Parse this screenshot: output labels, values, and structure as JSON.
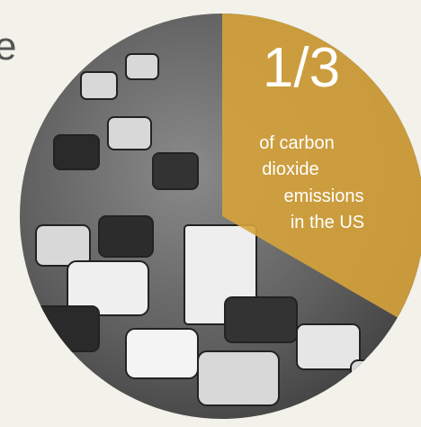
{
  "fragment": "e",
  "headline": "1/3",
  "caption": [
    "of carbon",
    "dioxide",
    "emissions",
    "in the US"
  ]
}
